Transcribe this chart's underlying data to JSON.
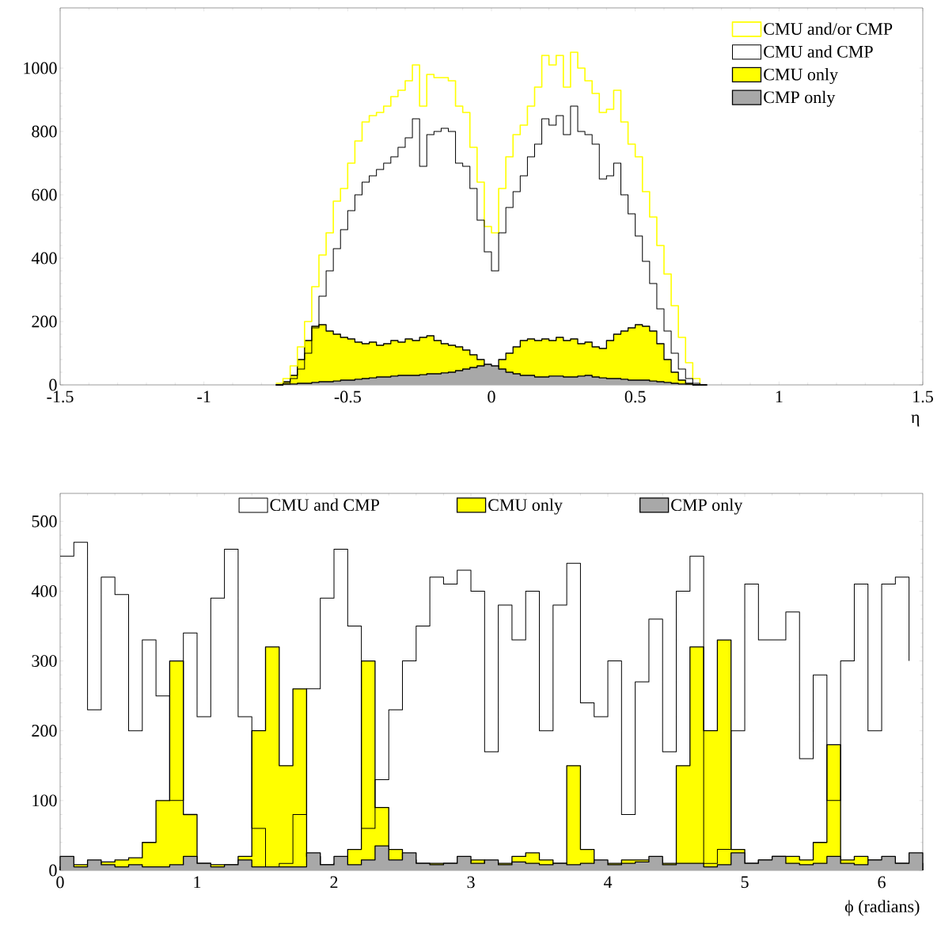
{
  "chart_data": [
    {
      "type": "histogram",
      "xlabel": "η",
      "xlim": [
        -1.5,
        1.5
      ],
      "ylim": [
        0,
        1190
      ],
      "xticks": [
        -1.5,
        -1,
        -0.5,
        0,
        0.5,
        1,
        1.5
      ],
      "yticks": [
        0,
        200,
        400,
        600,
        800,
        1000
      ],
      "legend": "top right",
      "bins": [
        -0.75,
        -0.725,
        -0.7,
        -0.675,
        -0.65,
        -0.625,
        -0.6,
        -0.575,
        -0.55,
        -0.525,
        -0.5,
        -0.475,
        -0.45,
        -0.425,
        -0.4,
        -0.375,
        -0.35,
        -0.325,
        -0.3,
        -0.275,
        -0.25,
        -0.225,
        -0.2,
        -0.175,
        -0.15,
        -0.125,
        -0.1,
        -0.075,
        -0.05,
        -0.025,
        0,
        0.025,
        0.05,
        0.075,
        0.1,
        0.125,
        0.15,
        0.175,
        0.2,
        0.225,
        0.25,
        0.275,
        0.3,
        0.325,
        0.35,
        0.375,
        0.4,
        0.425,
        0.45,
        0.475,
        0.5,
        0.525,
        0.55,
        0.575,
        0.6,
        0.625,
        0.65,
        0.675,
        0.7,
        0.725,
        0.75
      ],
      "series": [
        {
          "name": "CMU and/or CMP",
          "type": "step",
          "color": "#ffff00",
          "x": [
            -0.75,
            -0.725,
            -0.7,
            -0.675,
            -0.65,
            -0.625,
            -0.6,
            -0.575,
            -0.55,
            -0.525,
            -0.5,
            -0.475,
            -0.45,
            -0.425,
            -0.4,
            -0.375,
            -0.35,
            -0.325,
            -0.3,
            -0.275,
            -0.25,
            -0.225,
            -0.2,
            -0.175,
            -0.15,
            -0.125,
            -0.1,
            -0.075,
            -0.05,
            -0.025,
            0,
            0.025,
            0.05,
            0.075,
            0.1,
            0.125,
            0.15,
            0.175,
            0.2,
            0.225,
            0.25,
            0.275,
            0.3,
            0.325,
            0.35,
            0.375,
            0.4,
            0.425,
            0.45,
            0.475,
            0.5,
            0.525,
            0.55,
            0.575,
            0.6,
            0.625,
            0.65,
            0.675,
            0.7,
            0.725
          ],
          "values": [
            5,
            20,
            60,
            120,
            200,
            310,
            410,
            480,
            580,
            620,
            700,
            770,
            830,
            850,
            860,
            880,
            910,
            930,
            960,
            1010,
            880,
            980,
            970,
            970,
            960,
            880,
            860,
            750,
            640,
            500,
            480,
            620,
            720,
            790,
            820,
            880,
            940,
            1040,
            1010,
            1040,
            940,
            1050,
            1000,
            960,
            920,
            860,
            870,
            930,
            830,
            760,
            720,
            610,
            530,
            440,
            350,
            250,
            150,
            70,
            20,
            5
          ]
        },
        {
          "name": "CMU and CMP",
          "type": "step",
          "color": "#000000",
          "x": [
            -0.75,
            -0.725,
            -0.7,
            -0.675,
            -0.65,
            -0.625,
            -0.6,
            -0.575,
            -0.55,
            -0.525,
            -0.5,
            -0.475,
            -0.45,
            -0.425,
            -0.4,
            -0.375,
            -0.35,
            -0.325,
            -0.3,
            -0.275,
            -0.25,
            -0.225,
            -0.2,
            -0.175,
            -0.15,
            -0.125,
            -0.1,
            -0.075,
            -0.05,
            -0.025,
            0,
            0.025,
            0.05,
            0.075,
            0.1,
            0.125,
            0.15,
            0.175,
            0.2,
            0.225,
            0.25,
            0.275,
            0.3,
            0.325,
            0.35,
            0.375,
            0.4,
            0.425,
            0.45,
            0.475,
            0.5,
            0.525,
            0.55,
            0.575,
            0.6,
            0.625,
            0.65,
            0.675,
            0.7,
            0.725
          ],
          "values": [
            0,
            5,
            20,
            50,
            100,
            180,
            280,
            360,
            430,
            490,
            550,
            600,
            640,
            660,
            680,
            700,
            720,
            750,
            780,
            840,
            690,
            790,
            800,
            810,
            800,
            700,
            690,
            620,
            520,
            420,
            360,
            480,
            560,
            610,
            660,
            720,
            760,
            840,
            820,
            850,
            790,
            880,
            800,
            790,
            760,
            650,
            660,
            700,
            600,
            540,
            470,
            390,
            320,
            240,
            170,
            100,
            50,
            20,
            5,
            0
          ]
        },
        {
          "name": "CMU only",
          "color": "#ffff00",
          "values": [
            0,
            10,
            30,
            80,
            140,
            185,
            190,
            170,
            160,
            150,
            145,
            135,
            130,
            135,
            125,
            130,
            140,
            135,
            145,
            140,
            150,
            155,
            140,
            130,
            125,
            120,
            110,
            95,
            80,
            60,
            55,
            80,
            100,
            120,
            140,
            145,
            140,
            145,
            140,
            150,
            140,
            145,
            130,
            135,
            120,
            115,
            140,
            160,
            170,
            180,
            190,
            185,
            170,
            130,
            80,
            40,
            15,
            5,
            0,
            0
          ]
        },
        {
          "name": "CMP only",
          "color": "#a8a8a8",
          "values": [
            0,
            2,
            3,
            5,
            5,
            8,
            10,
            10,
            12,
            15,
            15,
            18,
            20,
            22,
            25,
            25,
            28,
            30,
            30,
            30,
            32,
            35,
            35,
            38,
            40,
            45,
            50,
            55,
            60,
            65,
            60,
            50,
            40,
            35,
            30,
            30,
            25,
            25,
            28,
            28,
            25,
            25,
            28,
            30,
            25,
            22,
            20,
            20,
            18,
            15,
            15,
            15,
            12,
            10,
            8,
            5,
            3,
            2,
            0,
            0
          ]
        }
      ]
    },
    {
      "type": "histogram",
      "xlabel": "ϕ  (radians)",
      "xlim": [
        0,
        6.3
      ],
      "ylim": [
        0,
        540
      ],
      "xticks": [
        0,
        1,
        2,
        3,
        4,
        5,
        6
      ],
      "yticks": [
        0,
        100,
        200,
        300,
        400,
        500
      ],
      "legend": "top",
      "bins": [
        0,
        0.1,
        0.2,
        0.3,
        0.4,
        0.5,
        0.6,
        0.7,
        0.8,
        0.9,
        1,
        1.1,
        1.2,
        1.3,
        1.4,
        1.5,
        1.6,
        1.7,
        1.8,
        1.9,
        2,
        2.1,
        2.2,
        2.3,
        2.4,
        2.5,
        2.6,
        2.7,
        2.8,
        2.9,
        3,
        3.1,
        3.2,
        3.3,
        3.4,
        3.5,
        3.6,
        3.7,
        3.8,
        3.9,
        4,
        4.1,
        4.2,
        4.3,
        4.4,
        4.5,
        4.6,
        4.7,
        4.8,
        4.9,
        5,
        5.1,
        5.2,
        5.3,
        5.4,
        5.5,
        5.6,
        5.7,
        5.8,
        5.9,
        6,
        6.1,
        6.2,
        6.3
      ],
      "series": [
        {
          "name": "CMU and CMP",
          "type": "step",
          "color": "#000000",
          "x": [
            0,
            0.1,
            0.2,
            0.3,
            0.4,
            0.5,
            0.6,
            0.7,
            0.8,
            0.9,
            1,
            1.1,
            1.2,
            1.3,
            1.4,
            1.5,
            1.6,
            1.7,
            1.8,
            1.9,
            2,
            2.1,
            2.2,
            2.3,
            2.4,
            2.5,
            2.6,
            2.7,
            2.8,
            2.9,
            3,
            3.1,
            3.2,
            3.3,
            3.4,
            3.5,
            3.6,
            3.7,
            3.8,
            3.9,
            4,
            4.1,
            4.2,
            4.3,
            4.4,
            4.5,
            4.6,
            4.7,
            4.8,
            4.9,
            5,
            5.1,
            5.2,
            5.3,
            5.4,
            5.5,
            5.6,
            5.7,
            5.8,
            5.9,
            6,
            6.1,
            6.2
          ],
          "values": [
            450,
            470,
            230,
            420,
            395,
            200,
            330,
            250,
            100,
            340,
            220,
            390,
            460,
            220,
            60,
            5,
            10,
            80,
            260,
            390,
            460,
            350,
            60,
            130,
            230,
            300,
            350,
            420,
            410,
            430,
            400,
            170,
            380,
            330,
            400,
            200,
            380,
            440,
            240,
            220,
            300,
            80,
            270,
            360,
            170,
            400,
            450,
            10,
            30,
            200,
            410,
            330,
            330,
            370,
            160,
            280,
            100,
            300,
            410,
            200,
            410,
            420,
            300
          ]
        },
        {
          "name": "CMU only",
          "color": "#ffff00",
          "values": [
            5,
            8,
            10,
            12,
            15,
            18,
            40,
            100,
            300,
            80,
            10,
            8,
            8,
            20,
            200,
            320,
            150,
            260,
            20,
            8,
            10,
            30,
            300,
            90,
            30,
            15,
            10,
            10,
            10,
            12,
            15,
            10,
            10,
            20,
            25,
            15,
            10,
            150,
            30,
            10,
            10,
            15,
            15,
            15,
            10,
            150,
            320,
            200,
            330,
            30,
            10,
            15,
            20,
            20,
            15,
            40,
            180,
            15,
            20,
            15,
            12,
            10,
            10
          ]
        },
        {
          "name": "CMP only",
          "color": "#a8a8a8",
          "values": [
            20,
            5,
            15,
            8,
            5,
            8,
            5,
            5,
            8,
            20,
            10,
            5,
            8,
            15,
            5,
            5,
            5,
            5,
            25,
            8,
            20,
            8,
            15,
            35,
            15,
            25,
            10,
            8,
            10,
            20,
            10,
            15,
            8,
            12,
            10,
            8,
            10,
            8,
            10,
            15,
            8,
            10,
            12,
            20,
            8,
            10,
            10,
            5,
            8,
            25,
            10,
            15,
            20,
            10,
            8,
            10,
            20,
            10,
            8,
            15,
            20,
            10,
            25
          ]
        }
      ]
    }
  ]
}
